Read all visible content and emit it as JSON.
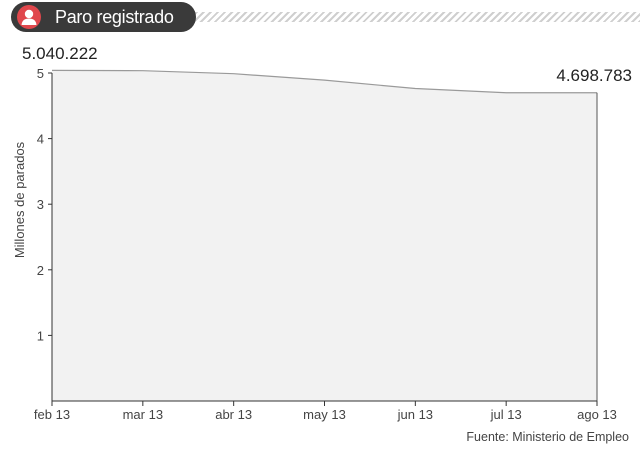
{
  "header": {
    "title": "Paro registrado",
    "icon": "person-icon",
    "accent_color": "#e0474c"
  },
  "source": "Fuente: Ministerio de Empleo",
  "chart_data": {
    "type": "area",
    "title": "Paro registrado",
    "xlabel": "",
    "ylabel": "Millones de parados",
    "ylim": [
      0,
      5
    ],
    "yticks": [
      "1",
      "2",
      "3",
      "4",
      "5"
    ],
    "categories": [
      "feb 13",
      "mar 13",
      "abr 13",
      "may 13",
      "jun 13",
      "jul 13",
      "ago 13"
    ],
    "values": [
      5.040222,
      5.035234,
      4.989193,
      4.890928,
      4.76368,
      4.698814,
      4.698783
    ],
    "annotations": {
      "first": "5.040.222",
      "last": "4.698.783"
    },
    "grid": false,
    "fill_color": "#f2f2f2",
    "line_color": "#9a9a9a"
  }
}
